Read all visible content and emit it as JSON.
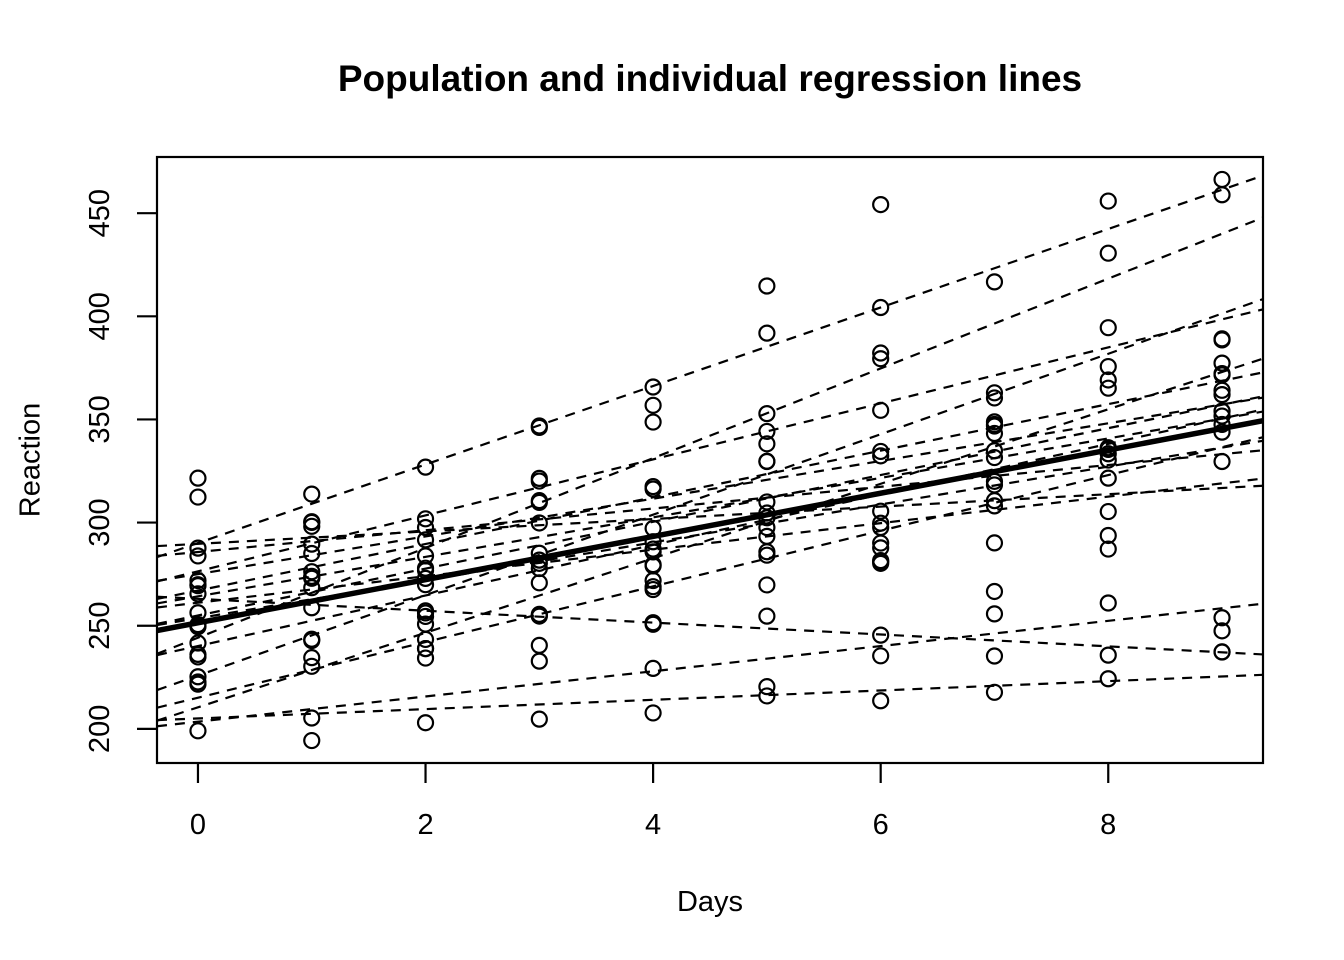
{
  "chart_data": {
    "type": "scatter",
    "title": "Population and individual regression lines",
    "xlabel": "Days",
    "ylabel": "Reaction",
    "xlim": [
      -0.36,
      9.36
    ],
    "ylim": [
      183.45,
      477.23
    ],
    "xticks": [
      0,
      2,
      4,
      6,
      8
    ],
    "yticks": [
      200,
      250,
      300,
      350,
      400,
      450
    ],
    "grid": "off",
    "legend": "none",
    "marker": "open-circle",
    "line_styles": {
      "individual": "dashed",
      "population": "thick-solid"
    },
    "colors": {
      "foreground": "#000000",
      "background": "#FFFFFF"
    },
    "days": [
      0,
      1,
      2,
      3,
      4,
      5,
      6,
      7,
      8,
      9
    ],
    "population_line": {
      "intercept": 251.41,
      "slope": 10.47
    },
    "subjects": [
      {
        "id": "308",
        "intercept": 244.19,
        "slope": 21.76,
        "reaction": [
          249.56,
          258.7,
          250.8,
          321.44,
          356.85,
          414.69,
          382.2,
          290.15,
          430.59,
          466.35
        ]
      },
      {
        "id": "309",
        "intercept": 205.05,
        "slope": 2.26,
        "reaction": [
          222.73,
          205.27,
          202.98,
          204.71,
          207.72,
          215.96,
          213.63,
          217.73,
          224.3,
          237.31
        ]
      },
      {
        "id": "310",
        "intercept": 203.48,
        "slope": 6.11,
        "reaction": [
          199.05,
          194.33,
          234.32,
          232.84,
          229.31,
          220.46,
          235.42,
          255.75,
          261.01,
          247.52
        ]
      },
      {
        "id": "330",
        "intercept": 289.69,
        "slope": 3.01,
        "reaction": [
          321.54,
          300.4,
          283.86,
          285.13,
          285.8,
          297.59,
          280.24,
          318.26,
          305.35,
          354.05
        ]
      },
      {
        "id": "331",
        "intercept": 285.74,
        "slope": 5.27,
        "reaction": [
          287.61,
          285.0,
          301.82,
          320.12,
          316.28,
          293.32,
          290.08,
          334.82,
          293.75,
          371.58
        ]
      },
      {
        "id": "332",
        "intercept": 264.25,
        "slope": 9.57,
        "reaction": [
          234.86,
          242.81,
          272.96,
          309.77,
          317.46,
          310.0,
          454.16,
          346.83,
          330.3,
          253.86
        ]
      },
      {
        "id": "333",
        "intercept": 275.02,
        "slope": 9.14,
        "reaction": [
          283.84,
          289.56,
          276.77,
          299.81,
          297.17,
          338.17,
          332.35,
          348.84,
          333.36,
          362.04
        ]
      },
      {
        "id": "334",
        "intercept": 240.16,
        "slope": 12.25,
        "reaction": [
          265.47,
          276.2,
          243.36,
          254.67,
          279.02,
          284.19,
          305.52,
          331.52,
          335.75,
          377.3
        ]
      },
      {
        "id": "335",
        "intercept": 263.03,
        "slope": -2.88,
        "reaction": [
          241.61,
          273.95,
          254.49,
          270.8,
          251.45,
          254.64,
          245.45,
          235.31,
          235.75,
          237.25
        ]
      },
      {
        "id": "337",
        "intercept": 290.1,
        "slope": 19.03,
        "reaction": [
          312.37,
          313.81,
          291.61,
          346.12,
          365.73,
          391.84,
          404.26,
          416.69,
          455.86,
          458.92
        ]
      },
      {
        "id": "349",
        "intercept": 215.11,
        "slope": 13.49,
        "reaction": [
          236.1,
          230.32,
          238.93,
          254.92,
          250.71,
          269.77,
          281.56,
          308.1,
          336.28,
          351.65
        ]
      },
      {
        "id": "350",
        "intercept": 225.83,
        "slope": 19.5,
        "reaction": [
          256.3,
          243.45,
          256.2,
          255.53,
          268.92,
          329.72,
          379.44,
          362.92,
          394.49,
          389.05
        ]
      },
      {
        "id": "351",
        "intercept": 261.15,
        "slope": 6.43,
        "reaction": [
          250.53,
          300.06,
          269.89,
          280.24,
          271.92,
          304.63,
          287.75,
          266.6,
          321.54,
          347.57
        ]
      },
      {
        "id": "352",
        "intercept": 276.37,
        "slope": 13.57,
        "reaction": [
          221.68,
          298.19,
          326.88,
          346.86,
          348.74,
          352.83,
          354.43,
          360.43,
          375.64,
          388.54
        ]
      },
      {
        "id": "369",
        "intercept": 254.97,
        "slope": 11.35,
        "reaction": [
          271.92,
          268.44,
          257.24,
          277.74,
          290.7,
          302.35,
          299.7,
          319.99,
          335.45,
          343.85
        ]
      },
      {
        "id": "370",
        "intercept": 210.45,
        "slope": 18.06,
        "reaction": [
          225.26,
          234.52,
          238.9,
          240.47,
          267.54,
          344.19,
          281.15,
          347.59,
          365.16,
          372.23
        ]
      },
      {
        "id": "371",
        "intercept": 253.64,
        "slope": 9.19,
        "reaction": [
          269.88,
          272.98,
          277.9,
          281.79,
          279.62,
          285.85,
          297.6,
          310.63,
          287.17,
          329.61
        ]
      },
      {
        "id": "372",
        "intercept": 267.04,
        "slope": 11.3,
        "reaction": [
          269.41,
          273.47,
          297.6,
          310.63,
          287.17,
          329.61,
          334.48,
          343.22,
          369.14,
          364.12
        ]
      }
    ]
  }
}
